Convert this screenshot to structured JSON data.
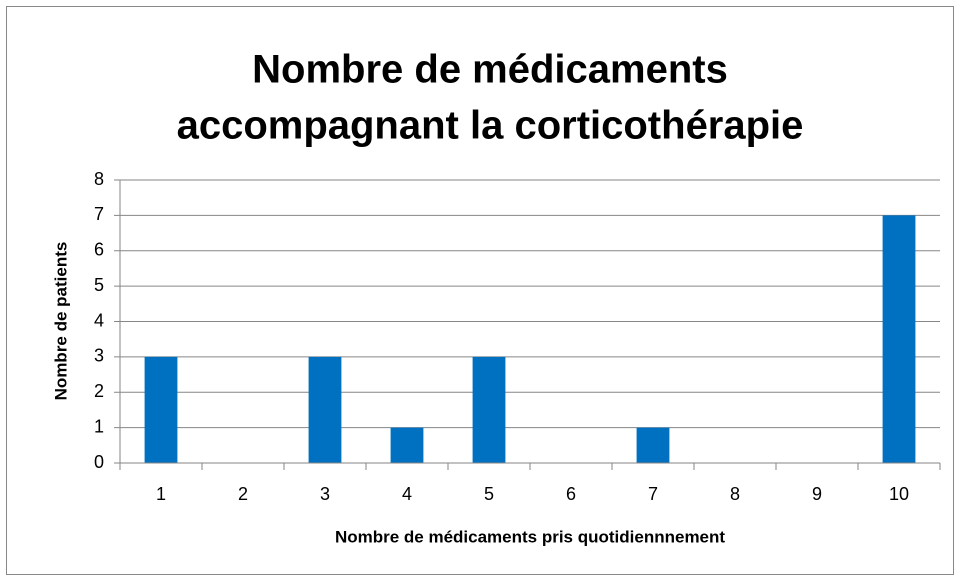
{
  "chart_data": {
    "type": "bar",
    "title": [
      "Nombre de médicaments",
      "accompagnant la corticothérapie"
    ],
    "x_label": "Nombre de médicaments pris quotidiennnement",
    "y_label": "Nombre de patients",
    "categories": [
      "1",
      "2",
      "3",
      "4",
      "5",
      "6",
      "7",
      "8",
      "9",
      "10"
    ],
    "values": [
      3,
      0,
      3,
      1,
      3,
      0,
      1,
      0,
      0,
      7
    ],
    "color": "#0070c0",
    "ylim": [
      0,
      8
    ],
    "yticks": [
      0,
      1,
      2,
      3,
      4,
      5,
      6,
      7,
      8
    ],
    "grid": true
  }
}
